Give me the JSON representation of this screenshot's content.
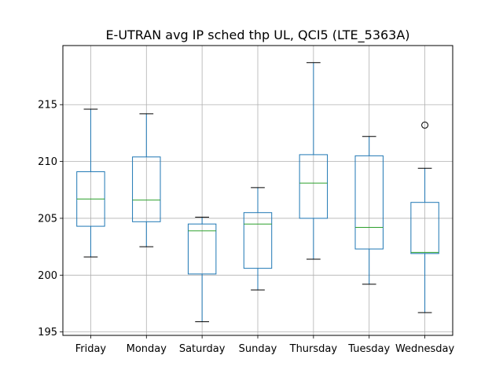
{
  "chart_data": {
    "type": "boxplot",
    "title": "E-UTRAN avg IP sched thp UL, QCI5 (LTE_5363A)",
    "xlabel": "",
    "ylabel": "",
    "ylim": [
      194.7,
      220.2
    ],
    "yticks": [
      195,
      200,
      205,
      210,
      215
    ],
    "grid": true,
    "categories": [
      "Friday",
      "Monday",
      "Saturday",
      "Sunday",
      "Thursday",
      "Tuesday",
      "Wednesday"
    ],
    "boxes": [
      {
        "name": "Friday",
        "whislo": 201.6,
        "q1": 204.3,
        "med": 206.7,
        "q3": 209.1,
        "whishi": 214.6,
        "fliers": []
      },
      {
        "name": "Monday",
        "whislo": 202.5,
        "q1": 204.7,
        "med": 206.6,
        "q3": 210.4,
        "whishi": 214.2,
        "fliers": []
      },
      {
        "name": "Saturday",
        "whislo": 195.9,
        "q1": 200.1,
        "med": 203.9,
        "q3": 204.5,
        "whishi": 205.1,
        "fliers": []
      },
      {
        "name": "Sunday",
        "whislo": 198.7,
        "q1": 200.6,
        "med": 204.5,
        "q3": 205.5,
        "whishi": 207.7,
        "fliers": []
      },
      {
        "name": "Thursday",
        "whislo": 201.4,
        "q1": 205.0,
        "med": 208.1,
        "q3": 210.6,
        "whishi": 218.7,
        "fliers": []
      },
      {
        "name": "Tuesday",
        "whislo": 199.2,
        "q1": 202.3,
        "med": 204.2,
        "q3": 210.5,
        "whishi": 212.2,
        "fliers": []
      },
      {
        "name": "Wednesday",
        "whislo": 196.7,
        "q1": 201.9,
        "med": 202.0,
        "q3": 206.4,
        "whishi": 209.4,
        "fliers": [
          213.2
        ]
      }
    ],
    "colors": {
      "box": "#1f77b4",
      "median": "#2ca02c",
      "whisker_cap": "#000000",
      "grid": "#b0b0b0"
    }
  }
}
